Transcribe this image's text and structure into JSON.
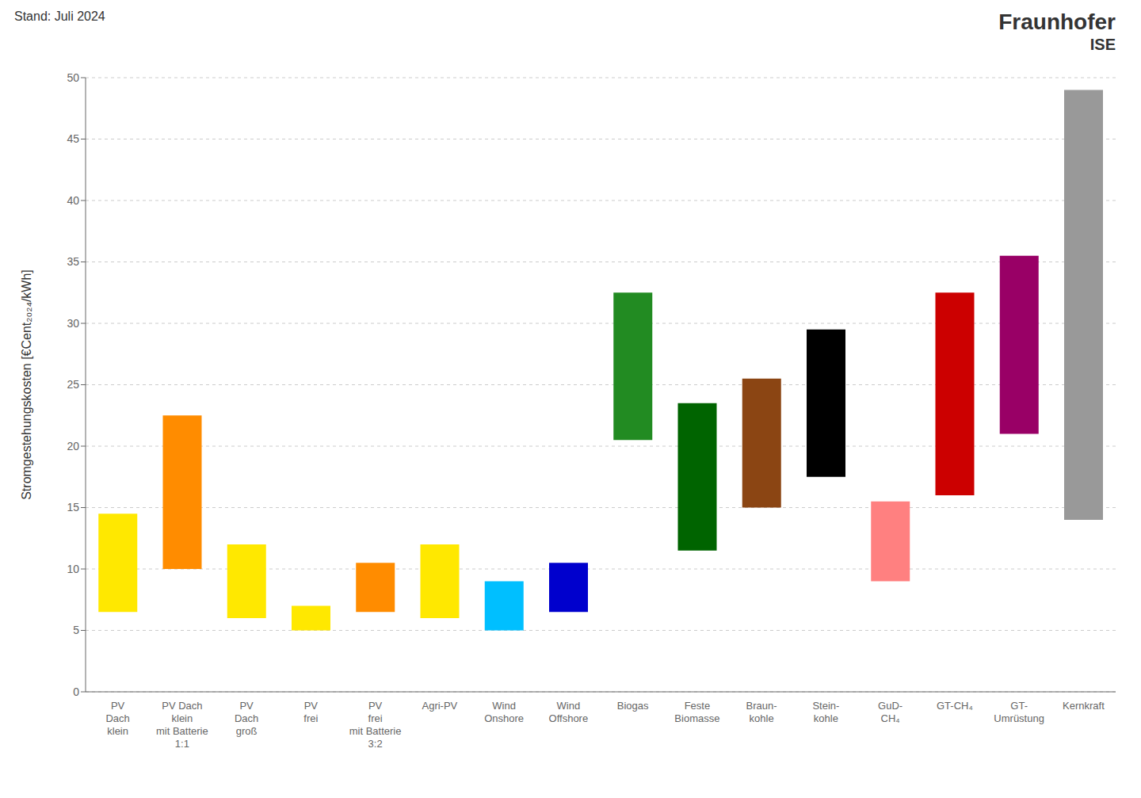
{
  "chart_data": {
    "type": "bar",
    "title": "Stand: Juli 2024",
    "ylabel": "Stromgestehungskosten [€Cent₂₀₂₄/kWh]",
    "annotations": [
      "Fraunhofer",
      "ISE"
    ],
    "categories": [
      "PV\nDach\nklein",
      "PV Dach\nklein\nmit Batterie\n1:1",
      "PV\nDach\ngroß",
      "PV\nfrei",
      "PV\nfrei\nmit Batterie\n3:2",
      "Agri-PV",
      "Wind\nOnshore",
      "Wind\nOffshore",
      "Biogas",
      "Feste\nBiomasse",
      "Braun-\nkohle",
      "Stein-\nkohle",
      "GuD-\nCH₄",
      "GT-CH₄",
      "GT-\nUmrüstung",
      "Kernkraft"
    ],
    "values": [
      [
        6.5,
        14.5
      ],
      [
        10.0,
        22.5
      ],
      [
        6.0,
        12.0
      ],
      [
        5.0,
        7.0
      ],
      [
        6.5,
        10.5
      ],
      [
        6.0,
        12.0
      ],
      [
        5.0,
        9.0
      ],
      [
        6.5,
        10.5
      ],
      [
        20.5,
        32.5
      ],
      [
        11.5,
        23.5
      ],
      [
        15.0,
        25.5
      ],
      [
        17.5,
        29.5
      ],
      [
        9.0,
        15.5
      ],
      [
        16.0,
        32.5
      ],
      [
        21.0,
        35.5
      ],
      [
        14.0,
        49.0
      ]
    ],
    "colors": [
      "#FFE800",
      "#FF8C00",
      "#FFE800",
      "#FFE800",
      "#FF8C00",
      "#FFE800",
      "#00BFFF",
      "#0000CD",
      "#228B22",
      "#006400",
      "#8B4513",
      "#000000",
      "#FF8080",
      "#CC0000",
      "#990066",
      "#999999"
    ],
    "ylim": [
      0,
      50
    ],
    "yticks": [
      0,
      5,
      10,
      15,
      20,
      25,
      30,
      35,
      40,
      45,
      50
    ],
    "grid": true
  }
}
